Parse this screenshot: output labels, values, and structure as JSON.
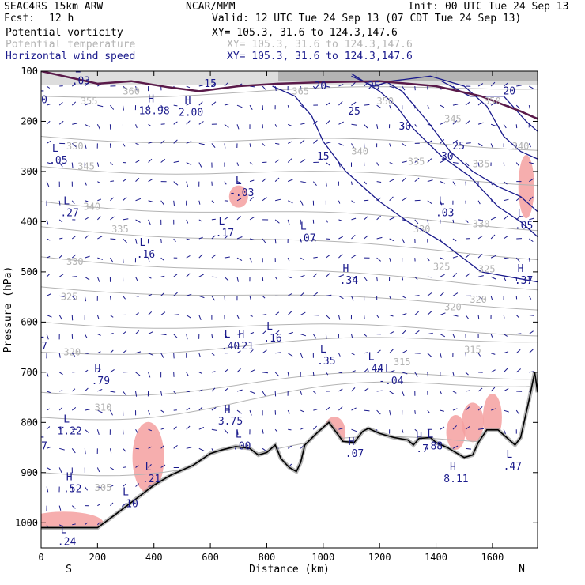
{
  "header": {
    "title_left": "SEAC4RS 15km ARW",
    "title_center": "NCAR/MMM",
    "init": "Init: 00 UTC Tue 24 Sep 13",
    "fcst_label": "Fcst:",
    "fcst_value": "12 h",
    "valid": "Valid: 12 UTC Tue 24 Sep 13 (07 CDT Tue 24 Sep 13)"
  },
  "fields": [
    {
      "name": "Potential vorticity",
      "xy": "XY= 105.3, 31.6 to 124.3,147.6",
      "color": "#000000"
    },
    {
      "name": "Potential temperature",
      "xy": "XY= 105.3, 31.6 to 124.3,147.6",
      "color": "#b4b4b4"
    },
    {
      "name": "Horizontal wind speed",
      "xy": "XY= 105.3, 31.6 to 124.3,147.6",
      "color": "#1a1a8c"
    }
  ],
  "colors": {
    "theta": "#b4b4b4",
    "wind": "#1a1a8c",
    "pv_high": "#f4a0a0",
    "pv2": "#5a1a4a",
    "terrain": "#000000"
  },
  "chart_data": {
    "type": "cross-section",
    "xlabel": "Distance (km)",
    "ylabel": "Pressure (hPa)",
    "xlim": [
      0,
      1760
    ],
    "ylim": [
      1050,
      100
    ],
    "x_ticks": [
      0,
      200,
      400,
      600,
      800,
      1000,
      1200,
      1400,
      1600
    ],
    "y_ticks": [
      100,
      200,
      300,
      400,
      500,
      600,
      700,
      800,
      900,
      1000
    ],
    "x_end_labels": {
      "left": "S",
      "right": "N"
    },
    "terrain": [
      [
        0,
        1010
      ],
      [
        200,
        1010
      ],
      [
        260,
        985
      ],
      [
        330,
        955
      ],
      [
        400,
        925
      ],
      [
        460,
        905
      ],
      [
        500,
        895
      ],
      [
        540,
        885
      ],
      [
        600,
        862
      ],
      [
        640,
        855
      ],
      [
        690,
        848
      ],
      [
        740,
        852
      ],
      [
        770,
        865
      ],
      [
        800,
        860
      ],
      [
        830,
        845
      ],
      [
        850,
        872
      ],
      [
        880,
        890
      ],
      [
        905,
        898
      ],
      [
        920,
        880
      ],
      [
        935,
        845
      ],
      [
        980,
        820
      ],
      [
        1000,
        810
      ],
      [
        1020,
        800
      ],
      [
        1040,
        815
      ],
      [
        1070,
        838
      ],
      [
        1110,
        840
      ],
      [
        1140,
        818
      ],
      [
        1160,
        812
      ],
      [
        1200,
        822
      ],
      [
        1250,
        830
      ],
      [
        1300,
        835
      ],
      [
        1320,
        845
      ],
      [
        1340,
        832
      ],
      [
        1380,
        830
      ],
      [
        1400,
        840
      ],
      [
        1440,
        850
      ],
      [
        1470,
        860
      ],
      [
        1500,
        870
      ],
      [
        1530,
        865
      ],
      [
        1550,
        840
      ],
      [
        1580,
        815
      ],
      [
        1620,
        815
      ],
      [
        1650,
        830
      ],
      [
        1680,
        845
      ],
      [
        1700,
        830
      ],
      [
        1730,
        755
      ],
      [
        1750,
        700
      ],
      [
        1760,
        740
      ]
    ],
    "theta_labels": [
      {
        "x": 320,
        "p": 140,
        "v": "360"
      },
      {
        "x": 170,
        "p": 160,
        "v": "355"
      },
      {
        "x": 920,
        "p": 140,
        "v": "365"
      },
      {
        "x": 1220,
        "p": 160,
        "v": "350"
      },
      {
        "x": 1460,
        "p": 195,
        "v": "345"
      },
      {
        "x": 1600,
        "p": 160,
        "v": "350"
      },
      {
        "x": 120,
        "p": 250,
        "v": "350"
      },
      {
        "x": 160,
        "p": 290,
        "v": "345"
      },
      {
        "x": 1130,
        "p": 260,
        "v": "340"
      },
      {
        "x": 1330,
        "p": 280,
        "v": "335"
      },
      {
        "x": 1560,
        "p": 285,
        "v": "335"
      },
      {
        "x": 1700,
        "p": 250,
        "v": "340"
      },
      {
        "x": 180,
        "p": 370,
        "v": "340"
      },
      {
        "x": 280,
        "p": 415,
        "v": "335"
      },
      {
        "x": 1350,
        "p": 415,
        "v": "330"
      },
      {
        "x": 1560,
        "p": 405,
        "v": "330"
      },
      {
        "x": 120,
        "p": 480,
        "v": "330"
      },
      {
        "x": 1420,
        "p": 490,
        "v": "325"
      },
      {
        "x": 1580,
        "p": 495,
        "v": "325"
      },
      {
        "x": 100,
        "p": 550,
        "v": "325"
      },
      {
        "x": 1460,
        "p": 570,
        "v": "320"
      },
      {
        "x": 1550,
        "p": 555,
        "v": "320"
      },
      {
        "x": 110,
        "p": 660,
        "v": "320"
      },
      {
        "x": 1530,
        "p": 655,
        "v": "315"
      },
      {
        "x": 1280,
        "p": 680,
        "v": "315"
      },
      {
        "x": 220,
        "p": 770,
        "v": "310"
      },
      {
        "x": 220,
        "p": 930,
        "v": "305"
      }
    ],
    "wind_labels": [
      {
        "x": 990,
        "p": 130,
        "v": "20"
      },
      {
        "x": 1180,
        "p": 130,
        "v": "25"
      },
      {
        "x": 1110,
        "p": 180,
        "v": "25"
      },
      {
        "x": 1290,
        "p": 210,
        "v": "30"
      },
      {
        "x": 1440,
        "p": 270,
        "v": "30"
      },
      {
        "x": 1660,
        "p": 140,
        "v": "20"
      },
      {
        "x": 1000,
        "p": 270,
        "v": "15"
      },
      {
        "x": 600,
        "p": 125,
        "v": "15"
      },
      {
        "x": 1480,
        "p": 250,
        "v": "25"
      }
    ],
    "extrema": [
      {
        "type": "L",
        "x": 130,
        "p": 112,
        "v": ".03"
      },
      {
        "type": "H",
        "x": 390,
        "p": 172,
        "v": "18.98"
      },
      {
        "type": "H",
        "x": 520,
        "p": 175,
        "v": "2.00"
      },
      {
        "type": "L",
        "x": 50,
        "p": 270,
        "v": ".05"
      },
      {
        "type": "L",
        "x": 90,
        "p": 375,
        "v": ".27"
      },
      {
        "type": "L",
        "x": 700,
        "p": 335,
        "v": "-.03"
      },
      {
        "type": "L",
        "x": 640,
        "p": 415,
        "v": ".17"
      },
      {
        "type": "L",
        "x": 930,
        "p": 425,
        "v": ".07"
      },
      {
        "type": "L",
        "x": 360,
        "p": 458,
        "v": ".16"
      },
      {
        "type": "H",
        "x": 1080,
        "p": 510,
        "v": ".34"
      },
      {
        "type": "L",
        "x": 1420,
        "p": 375,
        "v": ".03"
      },
      {
        "type": "L",
        "x": 1700,
        "p": 400,
        "v": ".05"
      },
      {
        "type": "H",
        "x": 1700,
        "p": 510,
        "v": ".37"
      },
      {
        "type": "L",
        "x": 660,
        "p": 640,
        "v": ".40"
      },
      {
        "type": "H",
        "x": 710,
        "p": 640,
        "v": ".21"
      },
      {
        "type": "L",
        "x": 810,
        "p": 625,
        "v": ".16"
      },
      {
        "type": "L",
        "x": 1000,
        "p": 670,
        "v": ".35"
      },
      {
        "type": "L",
        "x": 1170,
        "p": 685,
        "v": ".44"
      },
      {
        "type": "L",
        "x": 1230,
        "p": 710,
        "v": "-.04"
      },
      {
        "type": "H",
        "x": 200,
        "p": 710,
        "v": ".79"
      },
      {
        "type": "H",
        "x": 660,
        "p": 790,
        "v": "3.75"
      },
      {
        "type": "L",
        "x": 90,
        "p": 810,
        "v": "1.22"
      },
      {
        "type": "L",
        "x": 700,
        "p": 840,
        "v": ".00"
      },
      {
        "type": "H",
        "x": 1100,
        "p": 855,
        "v": ".07"
      },
      {
        "type": "L",
        "x": 1380,
        "p": 840,
        "v": ".88"
      },
      {
        "type": "H",
        "x": 1340,
        "p": 845,
        "v": ".7"
      },
      {
        "type": "L",
        "x": 380,
        "p": 905,
        "v": ".21"
      },
      {
        "type": "H",
        "x": 100,
        "p": 925,
        "v": ".52"
      },
      {
        "type": "L",
        "x": 300,
        "p": 955,
        "v": ".10"
      },
      {
        "type": "H",
        "x": 1460,
        "p": 905,
        "v": "8.11"
      },
      {
        "type": "L",
        "x": 1660,
        "p": 880,
        "v": ".47"
      },
      {
        "type": "L",
        "x": 80,
        "p": 1030,
        "v": ".24"
      },
      {
        "type": "L",
        "x": 0,
        "p": 150,
        "v": "0"
      },
      {
        "type": "L",
        "x": 0,
        "p": 840,
        "v": "7"
      },
      {
        "type": "L",
        "x": 0,
        "p": 640,
        "v": "7"
      }
    ]
  }
}
